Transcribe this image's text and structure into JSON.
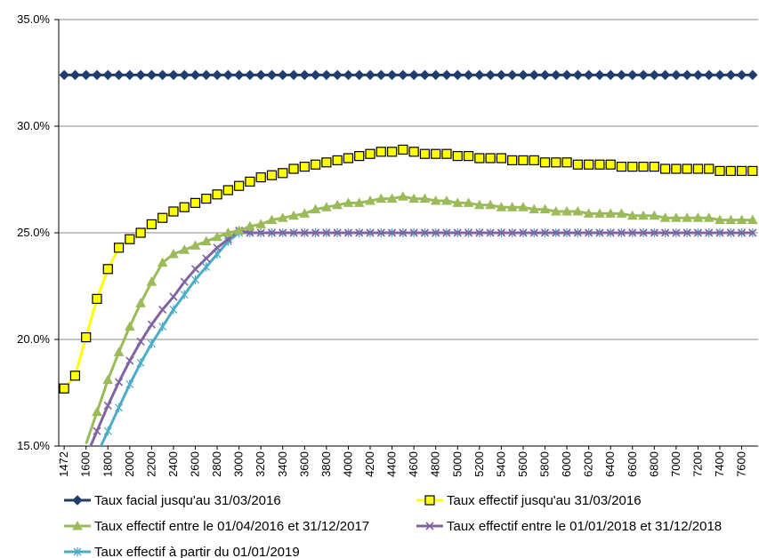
{
  "chart_data": {
    "type": "line",
    "title": "",
    "xlabel": "",
    "ylabel": "",
    "ylim": [
      0.15,
      0.35
    ],
    "yticks": [
      0.15,
      0.2,
      0.25,
      0.3,
      0.35
    ],
    "ytick_labels": [
      "15.0%",
      "20.0%",
      "25.0%",
      "30.0%",
      "35.0%"
    ],
    "x": [
      1472,
      1500,
      1600,
      1700,
      1800,
      1900,
      2000,
      2100,
      2200,
      2300,
      2400,
      2500,
      2600,
      2700,
      2800,
      2900,
      3000,
      3100,
      3200,
      3300,
      3400,
      3500,
      3600,
      3700,
      3800,
      3900,
      4000,
      4100,
      4200,
      4300,
      4400,
      4500,
      4600,
      4700,
      4800,
      4900,
      5000,
      5100,
      5200,
      5300,
      5400,
      5500,
      5600,
      5700,
      5800,
      5900,
      6000,
      6100,
      6200,
      6300,
      6400,
      6500,
      6600,
      6700,
      6800,
      6900,
      7000,
      7100,
      7200,
      7300,
      7400,
      7500,
      7600,
      7700
    ],
    "xtick_labels": [
      "1472",
      "1600",
      "1800",
      "2000",
      "2200",
      "2400",
      "2600",
      "2800",
      "3000",
      "3200",
      "3400",
      "3600",
      "3800",
      "4000",
      "4200",
      "4400",
      "4600",
      "4800",
      "5000",
      "5200",
      "5400",
      "5600",
      "5800",
      "6000",
      "6200",
      "6400",
      "6600",
      "6800",
      "7000",
      "7200",
      "7400",
      "7600"
    ],
    "grid": "horizontal",
    "legend_position": "bottom",
    "series": [
      {
        "name": "Taux facial jusqu'au 31/03/2016",
        "color": "#1F3E6E",
        "marker": "diamond",
        "values": [
          0.324,
          0.324,
          0.324,
          0.324,
          0.324,
          0.324,
          0.324,
          0.324,
          0.324,
          0.324,
          0.324,
          0.324,
          0.324,
          0.324,
          0.324,
          0.324,
          0.324,
          0.324,
          0.324,
          0.324,
          0.324,
          0.324,
          0.324,
          0.324,
          0.324,
          0.324,
          0.324,
          0.324,
          0.324,
          0.324,
          0.324,
          0.324,
          0.324,
          0.324,
          0.324,
          0.324,
          0.324,
          0.324,
          0.324,
          0.324,
          0.324,
          0.324,
          0.324,
          0.324,
          0.324,
          0.324,
          0.324,
          0.324,
          0.324,
          0.324,
          0.324,
          0.324,
          0.324,
          0.324,
          0.324,
          0.324,
          0.324,
          0.324,
          0.324,
          0.324,
          0.324,
          0.324,
          0.324,
          0.324
        ]
      },
      {
        "name": "Taux effectif jusqu'au 31/03/2016",
        "color": "#FFFF00",
        "marker": "square",
        "values": [
          0.177,
          0.183,
          0.201,
          0.219,
          0.233,
          0.243,
          0.247,
          0.25,
          0.254,
          0.257,
          0.26,
          0.262,
          0.264,
          0.266,
          0.268,
          0.27,
          0.272,
          0.274,
          0.276,
          0.277,
          0.278,
          0.28,
          0.281,
          0.282,
          0.283,
          0.284,
          0.285,
          0.286,
          0.287,
          0.288,
          0.288,
          0.289,
          0.288,
          0.287,
          0.287,
          0.287,
          0.286,
          0.286,
          0.285,
          0.285,
          0.285,
          0.284,
          0.284,
          0.284,
          0.283,
          0.283,
          0.283,
          0.282,
          0.282,
          0.282,
          0.282,
          0.281,
          0.281,
          0.281,
          0.281,
          0.28,
          0.28,
          0.28,
          0.28,
          0.28,
          0.279,
          0.279,
          0.279,
          0.279
        ]
      },
      {
        "name": "Taux effectif entre le 01/04/2016 et 31/12/2017",
        "color": "#9BBB59",
        "marker": "triangle",
        "values": [
          null,
          null,
          null,
          0.166,
          0.181,
          0.194,
          0.206,
          0.217,
          0.227,
          0.236,
          0.24,
          0.242,
          0.244,
          0.246,
          0.248,
          0.25,
          0.251,
          0.253,
          0.254,
          0.256,
          0.257,
          0.258,
          0.259,
          0.261,
          0.262,
          0.263,
          0.264,
          0.264,
          0.265,
          0.266,
          0.266,
          0.267,
          0.266,
          0.266,
          0.265,
          0.265,
          0.264,
          0.264,
          0.263,
          0.263,
          0.262,
          0.262,
          0.262,
          0.261,
          0.261,
          0.26,
          0.26,
          0.26,
          0.259,
          0.259,
          0.259,
          0.259,
          0.258,
          0.258,
          0.258,
          0.257,
          0.257,
          0.257,
          0.257,
          0.257,
          0.256,
          0.256,
          0.256,
          0.256
        ]
      },
      {
        "name": "Taux effectif entre le 01/01/2018 et 31/12/2018",
        "color": "#8064A2",
        "marker": "x",
        "values": [
          null,
          null,
          null,
          0.157,
          0.169,
          0.18,
          0.19,
          0.199,
          0.207,
          0.214,
          0.22,
          0.227,
          0.233,
          0.238,
          0.243,
          0.247,
          0.251,
          0.25,
          0.25,
          0.25,
          0.25,
          0.25,
          0.25,
          0.25,
          0.25,
          0.25,
          0.25,
          0.25,
          0.25,
          0.25,
          0.25,
          0.25,
          0.25,
          0.25,
          0.25,
          0.25,
          0.25,
          0.25,
          0.25,
          0.25,
          0.25,
          0.25,
          0.25,
          0.25,
          0.25,
          0.25,
          0.25,
          0.25,
          0.25,
          0.25,
          0.25,
          0.25,
          0.25,
          0.25,
          0.25,
          0.25,
          0.25,
          0.25,
          0.25,
          0.25,
          0.25,
          0.25,
          0.25,
          0.25
        ]
      },
      {
        "name": "Taux effectif à partir du 01/01/2019",
        "color": "#4BACC6",
        "marker": "star",
        "values": [
          null,
          null,
          null,
          null,
          0.157,
          0.168,
          0.179,
          0.189,
          0.198,
          0.206,
          0.214,
          0.221,
          0.228,
          0.234,
          0.24,
          0.246,
          0.25,
          0.25,
          0.25,
          0.25,
          0.25,
          0.25,
          0.25,
          0.25,
          0.25,
          0.25,
          0.25,
          0.25,
          0.25,
          0.25,
          0.25,
          0.25,
          0.25,
          0.25,
          0.25,
          0.25,
          0.25,
          0.25,
          0.25,
          0.25,
          0.25,
          0.25,
          0.25,
          0.25,
          0.25,
          0.25,
          0.25,
          0.25,
          0.25,
          0.25,
          0.25,
          0.25,
          0.25,
          0.25,
          0.25,
          0.25,
          0.25,
          0.25,
          0.25,
          0.25,
          0.25,
          0.25,
          0.25,
          0.25
        ]
      }
    ]
  }
}
